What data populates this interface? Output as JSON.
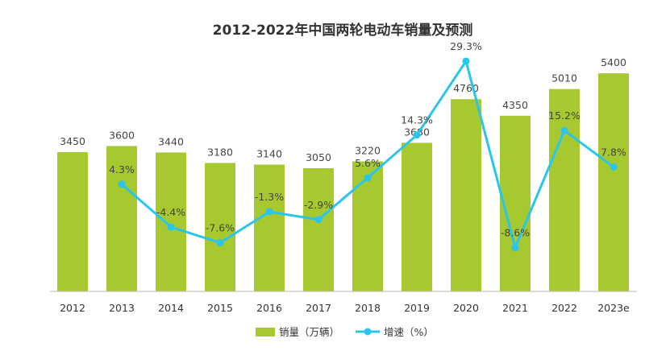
{
  "chart_data": {
    "type": "bar",
    "title": "2012-2022年中国两轮电动车销量及预测",
    "categories": [
      "2012",
      "2013",
      "2014",
      "2015",
      "2016",
      "2017",
      "2018",
      "2019",
      "2020",
      "2021",
      "2022",
      "2023e"
    ],
    "series": [
      {
        "name": "销量（万辆）",
        "type": "bar",
        "color": "#a7c930",
        "values": [
          3450,
          3600,
          3440,
          3180,
          3140,
          3050,
          3220,
          3680,
          4760,
          4350,
          5010,
          5400
        ],
        "labels": [
          "3450",
          "3600",
          "3440",
          "3180",
          "3140",
          "3050",
          "3220",
          "3680",
          "4760",
          "4350",
          "5010",
          "5400"
        ]
      },
      {
        "name": "增速（%）",
        "type": "line",
        "color": "#29c5ec",
        "values": [
          null,
          4.3,
          -4.4,
          -7.6,
          -1.3,
          -2.9,
          5.6,
          14.3,
          29.3,
          -8.6,
          15.2,
          7.8
        ],
        "labels": [
          "",
          "4.3%",
          "-4.4%",
          "-7.6%",
          "-1.3%",
          "-2.9%",
          "5.6%",
          "14.3%",
          "29.3%",
          "-8.6%",
          "15.2%",
          "7.8%"
        ]
      }
    ],
    "ylim": [
      0,
      6000
    ],
    "y2lim": [
      -25,
      45
    ],
    "grid": false,
    "legend": "bottom-center"
  }
}
